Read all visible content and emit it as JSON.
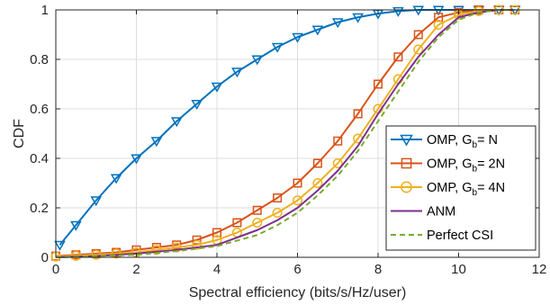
{
  "chart_data": {
    "type": "line",
    "xlabel": "Spectral efficiency (bits/s/Hz/user)",
    "ylabel": "CDF",
    "xlim": [
      0,
      12
    ],
    "ylim": [
      0,
      1
    ],
    "xticks": [
      "0",
      "2",
      "4",
      "6",
      "8",
      "10",
      "12"
    ],
    "yticks": [
      "0",
      "0.2",
      "0.4",
      "0.6",
      "0.8",
      "1"
    ],
    "grid": true,
    "legend_position": "bottom-right",
    "series": [
      {
        "name": "OMP, G_b= N",
        "legend_main": "OMP, G",
        "legend_sub": "b",
        "legend_tail": "= N",
        "color": "#0072BD",
        "marker": "triangle-down",
        "x": [
          0.1,
          0.5,
          1.0,
          1.5,
          2.0,
          2.5,
          3.0,
          3.5,
          4.0,
          4.5,
          5.0,
          5.5,
          6.0,
          6.5,
          7.0,
          7.5,
          8.0,
          8.5,
          9.0,
          9.5,
          10.0,
          10.5,
          11.0,
          11.4
        ],
        "y": [
          0.05,
          0.13,
          0.23,
          0.32,
          0.4,
          0.47,
          0.55,
          0.62,
          0.69,
          0.75,
          0.8,
          0.85,
          0.89,
          0.92,
          0.95,
          0.97,
          0.985,
          0.995,
          1.0,
          1.0,
          1.0,
          1.0,
          1.0,
          1.0
        ]
      },
      {
        "name": "OMP, G_b= 2N",
        "legend_main": "OMP, G",
        "legend_sub": "b",
        "legend_tail": "= 2N",
        "color": "#D95319",
        "marker": "square",
        "x": [
          0,
          0.5,
          1.0,
          1.5,
          2.0,
          2.5,
          3.0,
          3.5,
          4.0,
          4.5,
          5.0,
          5.5,
          6.0,
          6.5,
          7.0,
          7.5,
          8.0,
          8.5,
          9.0,
          9.5,
          10.0,
          10.5,
          11.0,
          11.4
        ],
        "y": [
          0.005,
          0.01,
          0.015,
          0.02,
          0.03,
          0.04,
          0.05,
          0.07,
          0.1,
          0.14,
          0.19,
          0.24,
          0.3,
          0.38,
          0.47,
          0.58,
          0.7,
          0.81,
          0.9,
          0.97,
          0.99,
          1.0,
          1.0,
          1.0
        ]
      },
      {
        "name": "OMP, G_b= 4N",
        "legend_main": "OMP, G",
        "legend_sub": "b",
        "legend_tail": "= 4N",
        "color": "#EDB120",
        "marker": "circle",
        "x": [
          0,
          0.5,
          1.0,
          1.5,
          2.0,
          2.5,
          3.0,
          3.5,
          4.0,
          4.5,
          5.0,
          5.5,
          6.0,
          6.5,
          7.0,
          7.5,
          8.0,
          8.5,
          9.0,
          9.5,
          10.0,
          10.5,
          11.0,
          11.4
        ],
        "y": [
          0.003,
          0.006,
          0.01,
          0.015,
          0.02,
          0.03,
          0.04,
          0.05,
          0.07,
          0.1,
          0.14,
          0.18,
          0.23,
          0.3,
          0.38,
          0.48,
          0.6,
          0.72,
          0.84,
          0.94,
          0.98,
          0.995,
          1.0,
          1.0
        ]
      },
      {
        "name": "ANM",
        "legend_main": "ANM",
        "legend_sub": "",
        "legend_tail": "",
        "color": "#7E2F8E",
        "marker": "none",
        "x": [
          0,
          1,
          2,
          3,
          4,
          4.5,
          5,
          5.5,
          6,
          6.5,
          7,
          7.5,
          8,
          8.5,
          9,
          9.5,
          10,
          10.5,
          11,
          11.4
        ],
        "y": [
          0,
          0.005,
          0.015,
          0.03,
          0.05,
          0.08,
          0.11,
          0.15,
          0.2,
          0.27,
          0.35,
          0.45,
          0.58,
          0.7,
          0.81,
          0.9,
          0.97,
          0.99,
          1.0,
          1.0
        ]
      },
      {
        "name": "Perfect CSI",
        "legend_main": "Perfect CSI",
        "legend_sub": "",
        "legend_tail": "",
        "color": "#77AC30",
        "marker": "none",
        "dashed": true,
        "x": [
          0,
          1,
          2,
          3,
          4,
          5,
          5.5,
          6,
          6.5,
          7,
          7.5,
          8,
          8.5,
          9,
          9.5,
          10,
          10.5,
          11,
          11.4
        ],
        "y": [
          0,
          0.005,
          0.01,
          0.025,
          0.045,
          0.09,
          0.13,
          0.18,
          0.25,
          0.33,
          0.43,
          0.55,
          0.67,
          0.79,
          0.89,
          0.96,
          0.99,
          1.0,
          1.0
        ]
      }
    ]
  }
}
